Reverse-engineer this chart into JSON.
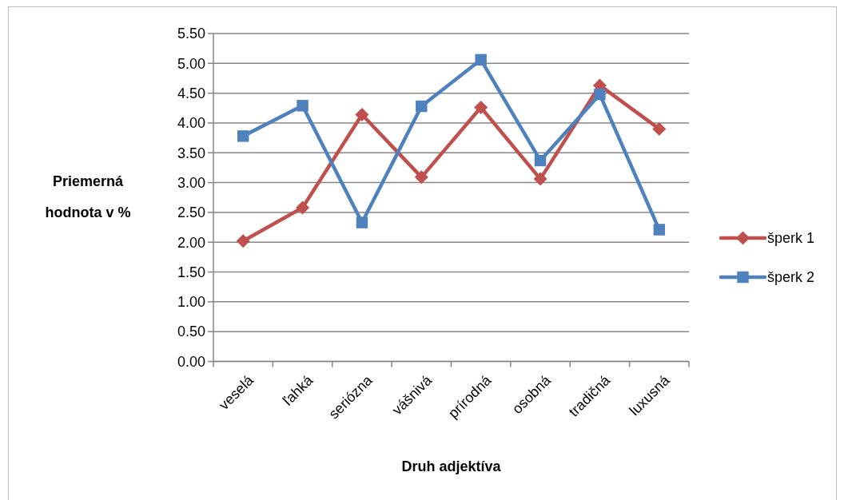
{
  "chart_data": {
    "type": "line",
    "xlabel": "Druh adjektíva",
    "ylabel": "Priemerná hodnota v %",
    "categories": [
      "veselá",
      "ľahká",
      "seriózna",
      "vášnivá",
      "prírodná",
      "osobná",
      "tradičná",
      "luxusná"
    ],
    "series": [
      {
        "name": "šperk 1",
        "color": "#c0504d",
        "marker": "diamond",
        "values": [
          2.02,
          2.58,
          4.14,
          3.09,
          4.26,
          3.06,
          4.63,
          3.9
        ]
      },
      {
        "name": "šperk 2",
        "color": "#4f81bd",
        "marker": "square",
        "values": [
          3.78,
          4.29,
          2.33,
          4.28,
          5.06,
          3.37,
          4.48,
          2.21
        ]
      }
    ],
    "ylim": [
      0,
      5.5
    ],
    "yticks": [
      {
        "value": 0,
        "label": "0.00"
      },
      {
        "value": 0.5,
        "label": "0.50"
      },
      {
        "value": 1,
        "label": "1.00"
      },
      {
        "value": 1.5,
        "label": "1.50"
      },
      {
        "value": 2,
        "label": "2.00"
      },
      {
        "value": 2.5,
        "label": "2.50"
      },
      {
        "value": 3,
        "label": "3.00"
      },
      {
        "value": 3.5,
        "label": "3.50"
      },
      {
        "value": 4,
        "label": "4.00"
      },
      {
        "value": 4.5,
        "label": "4.50"
      },
      {
        "value": 5,
        "label": "5.00"
      },
      {
        "value": 5.5,
        "label": "5.50"
      }
    ],
    "grid": "y",
    "legend": "right"
  }
}
